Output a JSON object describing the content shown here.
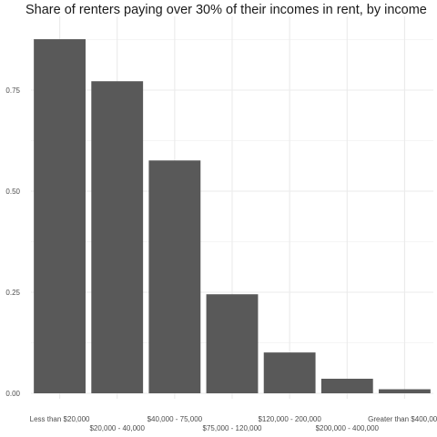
{
  "chart_data": {
    "type": "bar",
    "title": "Share of renters paying over 30% of their incomes in rent, by income",
    "xlabel": "",
    "ylabel": "",
    "categories": [
      "Less than $20,000",
      "$20,000 - 40,000",
      "$40,000 - 75,000",
      "$75,000 - 120,000",
      "$120,000 - 200,000",
      "$200,000 - 400,000",
      "Greater than $400,000"
    ],
    "values": [
      0.876,
      0.772,
      0.576,
      0.245,
      0.101,
      0.036,
      0.01
    ],
    "ylim": [
      0,
      0.9
    ],
    "yticks": [
      0.0,
      0.25,
      0.5,
      0.75
    ],
    "ytick_labels": [
      "0.00",
      "0.25",
      "0.50",
      "0.75"
    ],
    "grid": true,
    "bar_color": "#595959",
    "grid_color": "#ebebeb"
  }
}
